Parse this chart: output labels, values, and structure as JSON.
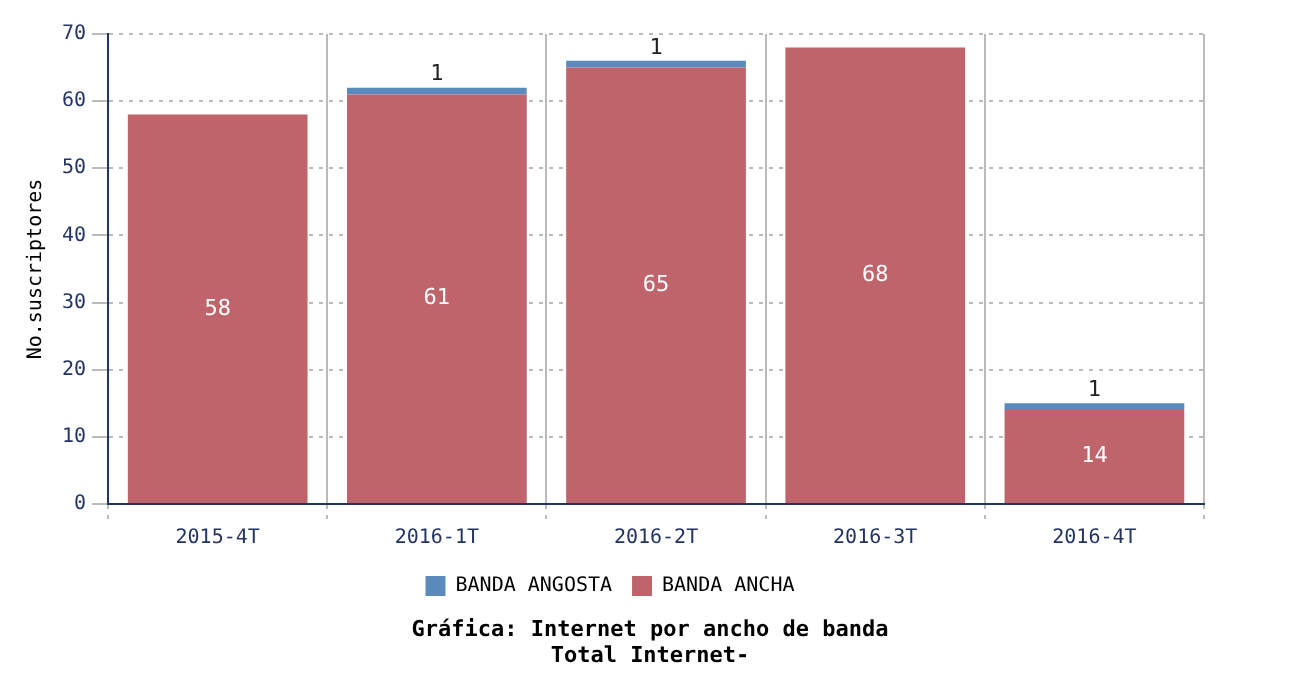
{
  "chart_data": {
    "type": "bar",
    "title": "Gráfica: Internet por ancho de banda",
    "subtitle": "Total Internet-",
    "ylabel": "No.suscriptores",
    "categories": [
      "2015-4T",
      "2016-1T",
      "2016-2T",
      "2016-3T",
      "2016-4T"
    ],
    "series": [
      {
        "name": "BANDA ANCHA",
        "color": "#c0646c",
        "values": [
          58,
          61,
          65,
          68,
          14
        ]
      },
      {
        "name": "BANDA ANGOSTA",
        "color": "#5b8bbd",
        "values": [
          null,
          1,
          1,
          null,
          1
        ]
      }
    ],
    "stacked": true,
    "ylim": [
      0,
      70
    ],
    "yticks": [
      0,
      10,
      20,
      30,
      40,
      50,
      60,
      70
    ],
    "grid": true,
    "legend": "bottom",
    "data_labels": true
  }
}
